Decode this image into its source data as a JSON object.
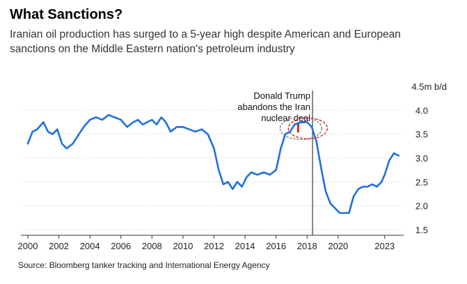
{
  "header": {
    "title": "What Sanctions?",
    "subtitle": "Iranian oil production has surged to a 5-year high despite American and European sanctions on the Middle Eastern nation's petroleum industry"
  },
  "footer": {
    "source": "Source: Bloomberg tanker tracking and International Energy Agency"
  },
  "colors": {
    "line": "#1f6fe0",
    "grid": "#c8c8c8",
    "annotation_circle": "#e0202a"
  },
  "chart_data": {
    "type": "line",
    "ylabel": "4.5m b/d",
    "ylim": [
      1.5,
      4.5
    ],
    "xlim": [
      2000,
      2024
    ],
    "y_ticks": [
      1.5,
      2.0,
      2.5,
      3.0,
      3.5,
      4.0
    ],
    "y_tick_labels": [
      "1.5",
      "2.0",
      "2.5",
      "3.0",
      "3.5",
      "4.0"
    ],
    "x_ticks": [
      2000,
      2002,
      2004,
      2006,
      2008,
      2010,
      2012,
      2014,
      2016,
      2018,
      2020,
      2023
    ],
    "x_tick_labels": [
      "2000",
      "2002",
      "2004",
      "2006",
      "2008",
      "2010",
      "2012",
      "2014",
      "2016",
      "2018",
      "2020",
      "2023"
    ],
    "grid": true,
    "annotations": [
      {
        "text_lines": [
          "Donald Trump",
          "abandons the Iran",
          "nuclear deal"
        ],
        "x": 2018.35
      }
    ],
    "series": [
      {
        "x": [
          2000.0,
          2000.3,
          2000.6,
          2001.0,
          2001.3,
          2001.6,
          2001.9,
          2002.2,
          2002.5,
          2002.9,
          2003.2,
          2003.6,
          2004.0,
          2004.4,
          2004.8,
          2005.2,
          2005.6,
          2006.0,
          2006.4,
          2006.8,
          2007.1,
          2007.4,
          2007.7,
          2008.0,
          2008.3,
          2008.6,
          2008.9,
          2009.2,
          2009.6,
          2010.0,
          2010.4,
          2010.8,
          2011.2,
          2011.6,
          2012.0,
          2012.3,
          2012.6,
          2012.9,
          2013.2,
          2013.5,
          2013.8,
          2014.1,
          2014.4,
          2014.8,
          2015.2,
          2015.6,
          2016.0,
          2016.3,
          2016.6,
          2016.9,
          2017.2,
          2017.6,
          2018.0,
          2018.3,
          2018.6,
          2018.9,
          2019.2,
          2019.5,
          2019.8,
          2020.1,
          2020.4,
          2020.7,
          2021.0,
          2021.3,
          2021.6,
          2021.9,
          2022.2,
          2022.5,
          2022.8,
          2023.0,
          2023.3,
          2023.6,
          2023.9
        ],
        "values": [
          3.3,
          3.55,
          3.6,
          3.75,
          3.55,
          3.5,
          3.6,
          3.3,
          3.2,
          3.3,
          3.45,
          3.65,
          3.8,
          3.85,
          3.8,
          3.9,
          3.85,
          3.8,
          3.65,
          3.75,
          3.8,
          3.7,
          3.75,
          3.8,
          3.7,
          3.85,
          3.75,
          3.55,
          3.65,
          3.65,
          3.6,
          3.55,
          3.6,
          3.5,
          3.2,
          2.75,
          2.45,
          2.5,
          2.35,
          2.5,
          2.4,
          2.6,
          2.7,
          2.65,
          2.7,
          2.65,
          2.75,
          3.2,
          3.5,
          3.55,
          3.7,
          3.75,
          3.75,
          3.65,
          3.35,
          2.8,
          2.3,
          2.05,
          1.95,
          1.85,
          1.85,
          1.85,
          2.2,
          2.35,
          2.4,
          2.4,
          2.45,
          2.4,
          2.5,
          2.65,
          2.95,
          3.1,
          3.05
        ]
      }
    ]
  }
}
